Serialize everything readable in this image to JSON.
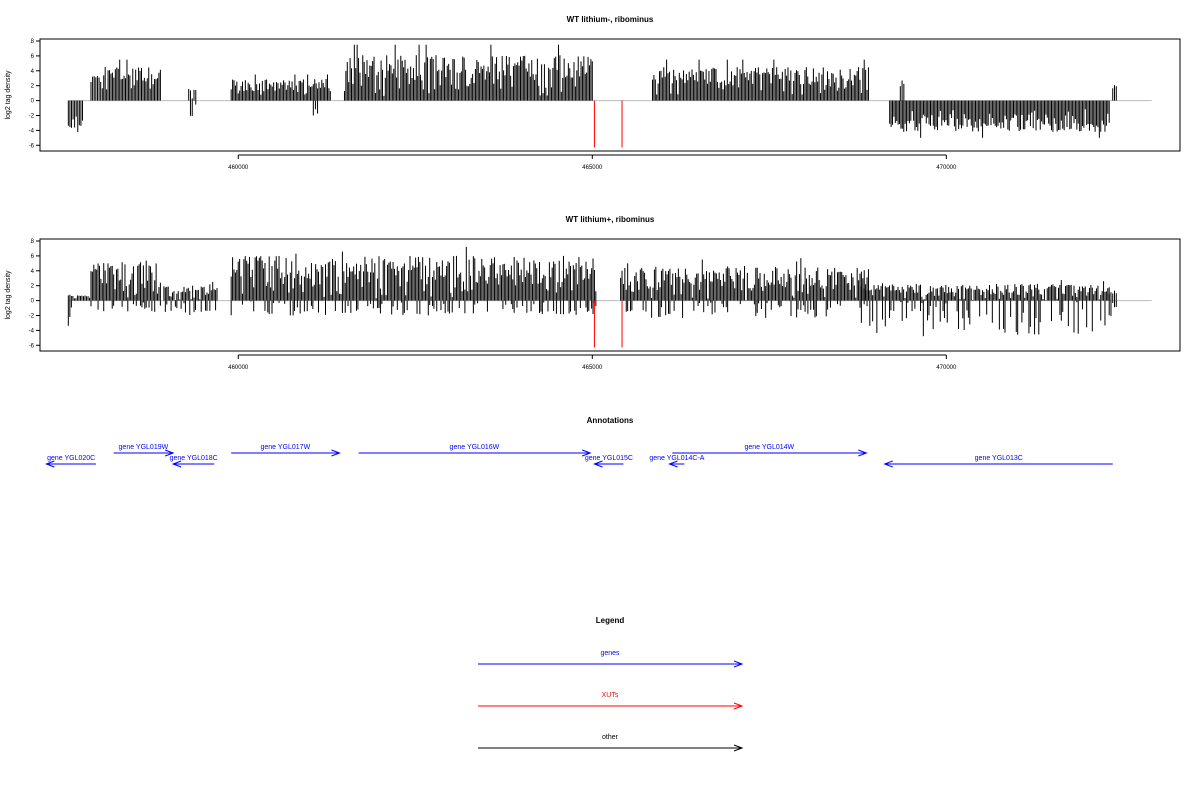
{
  "chart_data": [
    {
      "type": "bar",
      "title": "WT lithium-, ribominus",
      "ylabel": "log2 tag density",
      "ylim": [
        -6.5,
        8
      ],
      "yticks": [
        8,
        6,
        4,
        2,
        0,
        -2,
        -4,
        -6
      ],
      "xlim": [
        457200,
        473300
      ],
      "xticks": [
        460000,
        465000,
        470000
      ],
      "series": [
        {
          "color": "#000000",
          "segments": [
            {
              "from": 457600,
              "to": 457800,
              "min": -5.2,
              "max": -1.0
            },
            {
              "from": 457920,
              "to": 458080,
              "min": 0.5,
              "max": 5.0
            },
            {
              "from": 458100,
              "to": 458900,
              "min": 0.5,
              "max": 5.5
            },
            {
              "from": 459300,
              "to": 459400,
              "min": -3.0,
              "max": 2.5
            },
            {
              "from": 459900,
              "to": 461300,
              "min": 0.5,
              "max": 3.5
            },
            {
              "from": 461060,
              "to": 461120,
              "min": -2.0,
              "max": -1.0
            },
            {
              "from": 461500,
              "to": 465000,
              "min": 0.5,
              "max": 7.5
            },
            {
              "from": 465850,
              "to": 468900,
              "min": 0.5,
              "max": 5.5
            },
            {
              "from": 469350,
              "to": 469400,
              "min": 0.5,
              "max": 2.7
            },
            {
              "from": 469200,
              "to": 472300,
              "min": -5.0,
              "max": -1.0
            },
            {
              "from": 472350,
              "to": 472400,
              "min": 0.5,
              "max": 2.5
            }
          ]
        },
        {
          "color": "#ff0000",
          "segments": [
            {
              "from": 465030,
              "to": 465040,
              "min": -6.3,
              "max": 0
            },
            {
              "from": 465420,
              "to": 465430,
              "min": -6.3,
              "max": 0
            }
          ]
        }
      ]
    },
    {
      "type": "bar",
      "title": "WT lithium+, ribominus",
      "ylabel": "log2 tag density",
      "ylim": [
        -6.5,
        8
      ],
      "yticks": [
        8,
        6,
        4,
        2,
        0,
        -2,
        -4,
        -6
      ],
      "xlim": [
        457200,
        473300
      ],
      "xticks": [
        460000,
        465000,
        470000
      ],
      "series": [
        {
          "color": "#000000",
          "segments": [
            {
              "from": 457600,
              "to": 457900,
              "min": -4.5,
              "max": 1.0
            },
            {
              "from": 457920,
              "to": 458900,
              "min": -2.0,
              "max": 6.5
            },
            {
              "from": 458950,
              "to": 459700,
              "min": -2.5,
              "max": 2.8
            },
            {
              "from": 459900,
              "to": 465050,
              "min": -2.5,
              "max": 7.5
            },
            {
              "from": 465400,
              "to": 468900,
              "min": -3.0,
              "max": 5.8
            },
            {
              "from": 468800,
              "to": 472300,
              "min": -6.0,
              "max": 2.8
            },
            {
              "from": 472300,
              "to": 472400,
              "min": -3.0,
              "max": 1.5
            }
          ]
        },
        {
          "color": "#ff0000",
          "segments": [
            {
              "from": 465030,
              "to": 465040,
              "min": -6.3,
              "max": 0
            },
            {
              "from": 465420,
              "to": 465430,
              "min": -6.3,
              "max": 0
            }
          ]
        }
      ]
    },
    {
      "type": "annotation_track",
      "title": "Annotations",
      "xlim": [
        457200,
        473300
      ],
      "features": [
        {
          "label": "gene YGL020C",
          "start": 457290,
          "end": 457990,
          "strand": "-",
          "row": 1,
          "color": "#0000ff"
        },
        {
          "label": "gene YGL019W",
          "start": 458240,
          "end": 459080,
          "strand": "+",
          "row": 0,
          "color": "#0000ff"
        },
        {
          "label": "gene YGL018C",
          "start": 459080,
          "end": 459660,
          "strand": "-",
          "row": 1,
          "color": "#0000ff"
        },
        {
          "label": "gene YGL017W",
          "start": 459900,
          "end": 461430,
          "strand": "+",
          "row": 0,
          "color": "#0000ff"
        },
        {
          "label": "gene YGL016W",
          "start": 461700,
          "end": 464970,
          "strand": "+",
          "row": 0,
          "color": "#0000ff"
        },
        {
          "label": "gene YGL015C",
          "start": 465030,
          "end": 465440,
          "strand": "-",
          "row": 1,
          "color": "#0000ff"
        },
        {
          "label": "gene YGL014C-A",
          "start": 466090,
          "end": 466300,
          "strand": "-",
          "row": 1,
          "color": "#0000ff"
        },
        {
          "label": "gene YGL014W",
          "start": 466130,
          "end": 468870,
          "strand": "+",
          "row": 0,
          "color": "#0000ff"
        },
        {
          "label": "gene YGL013C",
          "start": 469130,
          "end": 472350,
          "strand": "-",
          "row": 1,
          "color": "#0000ff"
        }
      ]
    },
    {
      "type": "legend",
      "title": "Legend",
      "entries": [
        {
          "label": "genes",
          "color": "#0000ff"
        },
        {
          "label": "XUTs",
          "color": "#ff0000"
        },
        {
          "label": "other",
          "color": "#000000"
        }
      ]
    }
  ]
}
